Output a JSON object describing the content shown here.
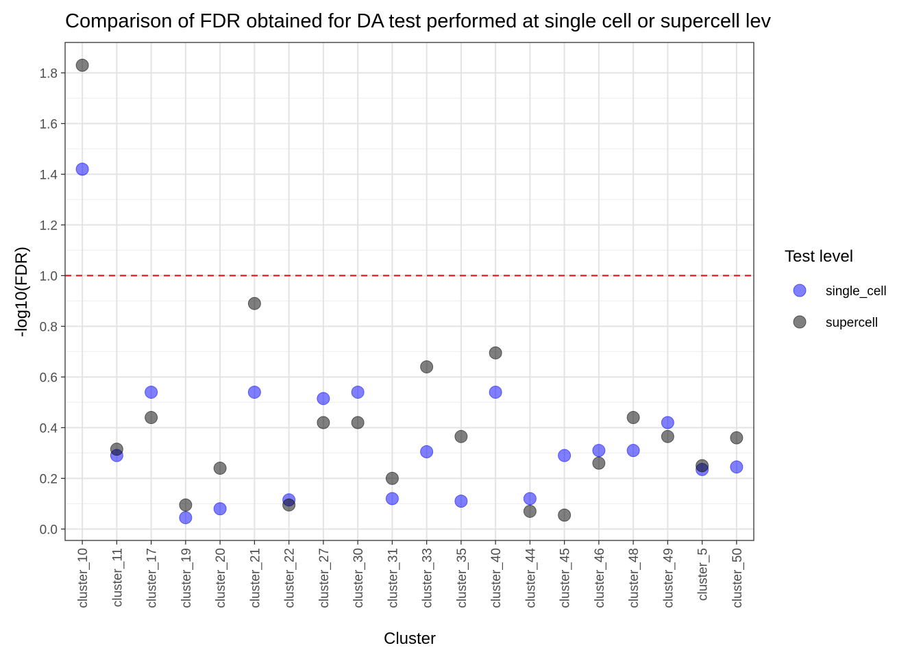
{
  "chart_data": {
    "type": "scatter",
    "title": "Comparison of FDR obtained for DA test performed at single cell or supercell lev",
    "xlabel": "Cluster",
    "ylabel": "-log10(FDR)",
    "categories": [
      "cluster_10",
      "cluster_11",
      "cluster_17",
      "cluster_19",
      "cluster_20",
      "cluster_21",
      "cluster_22",
      "cluster_27",
      "cluster_30",
      "cluster_31",
      "cluster_33",
      "cluster_35",
      "cluster_40",
      "cluster_44",
      "cluster_45",
      "cluster_46",
      "cluster_48",
      "cluster_49",
      "cluster_5",
      "cluster_50"
    ],
    "ylim": [
      -0.045,
      1.92
    ],
    "yticks": [
      0.0,
      0.2,
      0.4,
      0.6,
      0.8,
      1.0,
      1.2,
      1.4,
      1.6,
      1.8
    ],
    "ytick_labels": [
      "0.0",
      "0.2",
      "0.4",
      "0.6",
      "0.8",
      "1.0",
      "1.2",
      "1.4",
      "1.6",
      "1.8"
    ],
    "grid": true,
    "threshold": {
      "y": 1.0,
      "color": "#e41a1c",
      "style": "dashed"
    },
    "legend": {
      "title": "Test level",
      "position": "right"
    },
    "series": [
      {
        "name": "single_cell",
        "color": "#0000ff",
        "values": [
          1.42,
          0.29,
          0.54,
          0.045,
          0.08,
          0.54,
          0.115,
          0.515,
          0.54,
          0.12,
          0.305,
          0.11,
          0.54,
          0.12,
          0.29,
          0.31,
          0.31,
          0.42,
          0.235,
          0.245
        ]
      },
      {
        "name": "supercell",
        "color": "#000000",
        "values": [
          1.83,
          0.315,
          0.44,
          0.095,
          0.24,
          0.89,
          0.095,
          0.42,
          0.42,
          0.2,
          0.64,
          0.365,
          0.695,
          0.07,
          0.055,
          0.26,
          0.44,
          0.365,
          0.25,
          0.36
        ]
      }
    ]
  }
}
